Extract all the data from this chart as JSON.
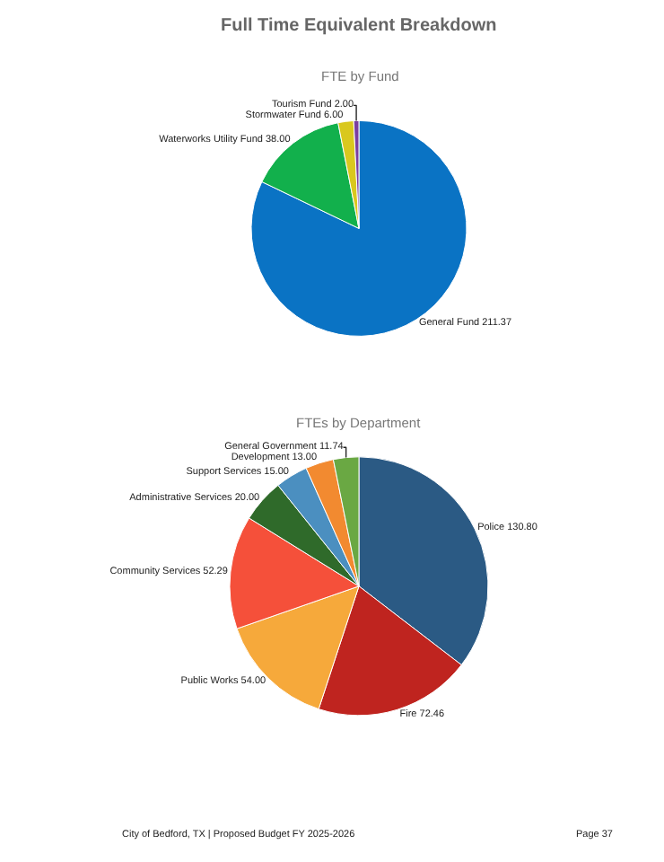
{
  "chart_data": [
    {
      "type": "pie",
      "title": "FTE by Fund",
      "annotations": [
        "Full Time Equivalent Breakdown"
      ],
      "categories": [
        "General Fund",
        "Waterworks Utility Fund",
        "Stormwater Fund",
        "Tourism Fund"
      ],
      "values": [
        211.37,
        38.0,
        6.0,
        2.0
      ],
      "value_labels": [
        "211.37",
        "38.00",
        "6.00",
        "2.00"
      ],
      "colors": [
        "#0a73c4",
        "#12b04c",
        "#d9c81e",
        "#7a3fa0"
      ]
    },
    {
      "type": "pie",
      "title": "FTEs by Department",
      "annotations": [
        "City of Bedford, TX | Proposed Budget FY 2025-2026",
        "Page 37"
      ],
      "categories": [
        "Police",
        "Fire",
        "Public Works",
        "Community Services",
        "Administrative Services",
        "Support Services",
        "Development",
        "General Government"
      ],
      "values": [
        130.8,
        72.46,
        54.0,
        52.29,
        20.0,
        15.0,
        13.0,
        11.74
      ],
      "value_labels": [
        "130.80",
        "72.46",
        "54.00",
        "52.29",
        "20.00",
        "15.00",
        "13.00",
        "11.74"
      ],
      "colors": [
        "#2b5a84",
        "#bf241f",
        "#f6a93b",
        "#f5503a",
        "#2f6a2a",
        "#4b8fc0",
        "#f28a30",
        "#6aa843"
      ]
    }
  ]
}
